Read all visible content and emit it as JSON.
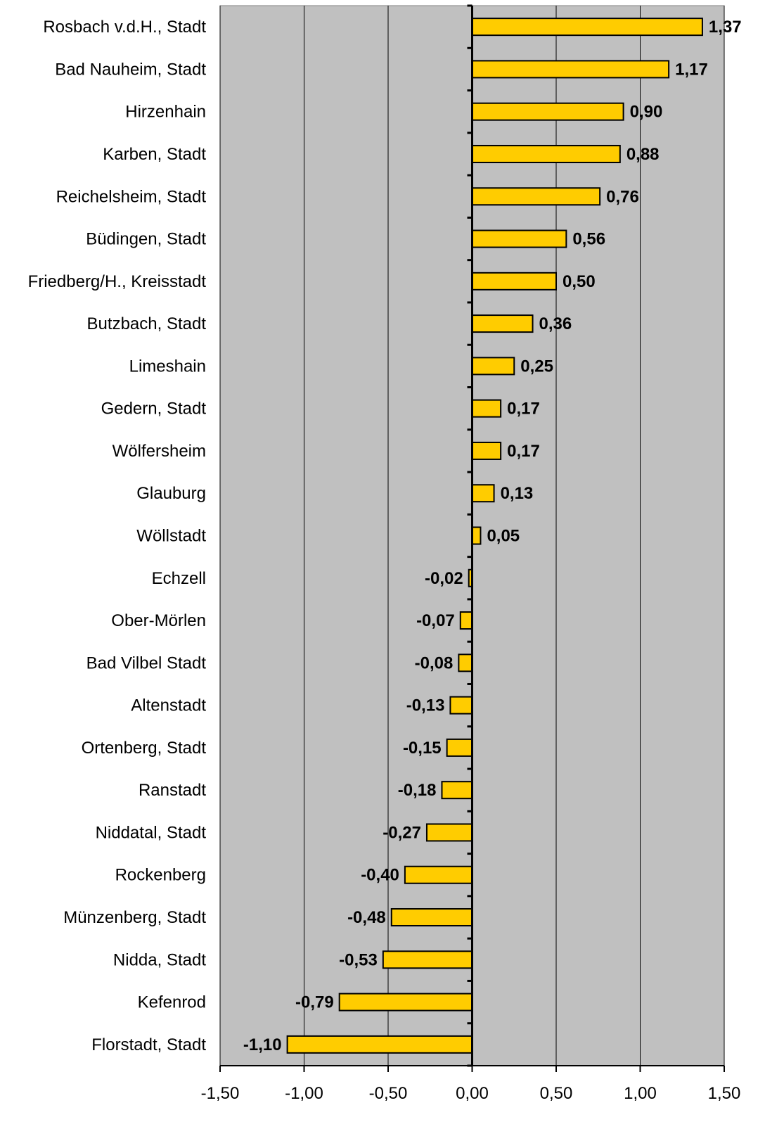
{
  "chart_data": {
    "type": "bar",
    "orientation": "horizontal",
    "title": "",
    "xlabel": "",
    "ylabel": "",
    "xlim": [
      -1.5,
      1.5
    ],
    "x_ticks": [
      -1.5,
      -1.0,
      -0.5,
      0.0,
      0.5,
      1.0,
      1.5
    ],
    "x_tick_labels": [
      "-1,50",
      "-1,00",
      "-0,50",
      "0,00",
      "0,50",
      "1,00",
      "1,50"
    ],
    "grid": "vertical",
    "legend": "none",
    "colors": {
      "plot_background": "#c0c0c0",
      "bar_fill": "#ffcc00",
      "bar_stroke": "#000000",
      "gridline": "#000000"
    },
    "categories": [
      "Rosbach v.d.H., Stadt",
      "Bad Nauheim, Stadt",
      "Hirzenhain",
      "Karben, Stadt",
      "Reichelsheim, Stadt",
      "Büdingen, Stadt",
      "Friedberg/H., Kreisstadt",
      "Butzbach, Stadt",
      "Limeshain",
      "Gedern, Stadt",
      "Wölfersheim",
      "Glauburg",
      "Wöllstadt",
      "Echzell",
      "Ober-Mörlen",
      "Bad Vilbel Stadt",
      "Altenstadt",
      "Ortenberg, Stadt",
      "Ranstadt",
      "Niddatal, Stadt",
      "Rockenberg",
      "Münzenberg, Stadt",
      "Nidda, Stadt",
      "Kefenrod",
      "Florstadt, Stadt"
    ],
    "values": [
      1.37,
      1.17,
      0.9,
      0.88,
      0.76,
      0.56,
      0.5,
      0.36,
      0.25,
      0.17,
      0.17,
      0.13,
      0.05,
      -0.02,
      -0.07,
      -0.08,
      -0.13,
      -0.15,
      -0.18,
      -0.27,
      -0.4,
      -0.48,
      -0.53,
      -0.79,
      -1.1
    ],
    "value_labels": [
      "1,37",
      "1,17",
      "0,90",
      "0,88",
      "0,76",
      "0,56",
      "0,50",
      "0,36",
      "0,25",
      "0,17",
      "0,17",
      "0,13",
      "0,05",
      "-0,02",
      "-0,07",
      "-0,08",
      "-0,13",
      "-0,15",
      "-0,18",
      "-0,27",
      "-0,40",
      "-0,48",
      "-0,53",
      "-0,79",
      "-1,10"
    ]
  }
}
